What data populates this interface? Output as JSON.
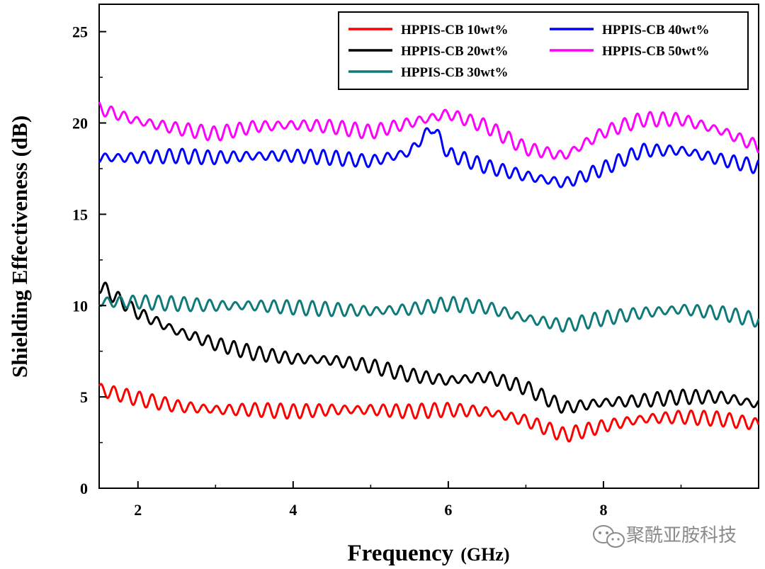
{
  "chart_data": {
    "type": "line",
    "title": "",
    "xlabel": "Frequency",
    "xlabel_unit": "(GHz)",
    "ylabel": "Shielding Effectiveness (dB)",
    "xlim": [
      1.5,
      10.0
    ],
    "ylim": [
      0,
      26.5
    ],
    "xticks": [
      2,
      4,
      6,
      8
    ],
    "yticks": [
      0,
      5,
      10,
      15,
      20,
      25
    ],
    "grid": false,
    "legend_position": "top-right",
    "series": [
      {
        "name": "HPPIS-CB 10wt%",
        "color": "#ff0000",
        "x": [
          1.5,
          2.0,
          2.5,
          3.0,
          3.5,
          4.0,
          4.5,
          5.0,
          5.5,
          6.0,
          6.5,
          7.0,
          7.5,
          8.0,
          8.5,
          9.0,
          9.5,
          10.0
        ],
        "y": [
          5.4,
          4.9,
          4.5,
          4.3,
          4.3,
          4.2,
          4.3,
          4.3,
          4.2,
          4.3,
          4.2,
          3.7,
          2.9,
          3.4,
          3.8,
          3.9,
          3.8,
          3.5
        ]
      },
      {
        "name": "HPPIS-CB 20wt%",
        "color": "#000000",
        "x": [
          1.5,
          2.0,
          2.5,
          3.0,
          3.5,
          4.0,
          4.5,
          5.0,
          5.5,
          6.0,
          6.5,
          7.0,
          7.5,
          8.0,
          8.5,
          9.0,
          9.5,
          10.0
        ],
        "y": [
          11.1,
          9.6,
          8.6,
          7.9,
          7.4,
          7.1,
          7.0,
          6.7,
          6.2,
          5.9,
          6.1,
          5.5,
          4.4,
          4.7,
          4.8,
          5.0,
          5.0,
          4.6
        ]
      },
      {
        "name": "HPPIS-CB 30wt%",
        "color": "#107a7a",
        "x": [
          1.5,
          2.0,
          2.5,
          3.0,
          3.5,
          4.0,
          4.5,
          5.0,
          5.5,
          6.0,
          6.5,
          7.0,
          7.5,
          8.0,
          8.5,
          9.0,
          9.5,
          10.0
        ],
        "y": [
          10.2,
          10.2,
          10.1,
          10.0,
          10.0,
          9.9,
          9.8,
          9.7,
          9.8,
          10.1,
          9.9,
          9.3,
          8.9,
          9.3,
          9.6,
          9.8,
          9.6,
          9.2
        ]
      },
      {
        "name": "HPPIS-CB 40wt%",
        "color": "#0000ff",
        "x": [
          1.5,
          2.0,
          2.5,
          3.0,
          3.5,
          4.0,
          4.5,
          5.0,
          5.5,
          5.8,
          6.0,
          6.5,
          7.0,
          7.5,
          8.0,
          8.5,
          9.0,
          9.5,
          10.0
        ],
        "y": [
          18.1,
          18.1,
          18.2,
          18.1,
          18.2,
          18.2,
          18.1,
          17.9,
          18.4,
          19.8,
          18.3,
          17.6,
          17.1,
          16.7,
          17.5,
          18.5,
          18.5,
          18.0,
          17.6
        ]
      },
      {
        "name": "HPPIS-CB 50wt%",
        "color": "#ff00ff",
        "x": [
          1.5,
          2.0,
          2.5,
          3.0,
          3.5,
          4.0,
          4.5,
          5.0,
          5.5,
          6.0,
          6.5,
          7.0,
          7.5,
          8.0,
          8.5,
          9.0,
          9.5,
          10.0
        ],
        "y": [
          20.8,
          20.1,
          19.7,
          19.4,
          19.8,
          19.9,
          19.8,
          19.5,
          20.0,
          20.5,
          19.8,
          18.6,
          18.2,
          19.5,
          20.2,
          20.2,
          19.6,
          18.7
        ]
      }
    ]
  },
  "watermark": {
    "text": "聚酰亚胺科技",
    "icon": "wechat-icon"
  }
}
